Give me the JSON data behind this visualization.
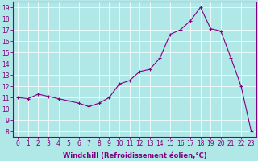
{
  "x": [
    0,
    1,
    2,
    3,
    4,
    5,
    6,
    7,
    8,
    9,
    10,
    11,
    12,
    13,
    14,
    15,
    16,
    17,
    18,
    19,
    20,
    21,
    22,
    23
  ],
  "y": [
    11.0,
    10.9,
    11.3,
    11.1,
    10.9,
    10.7,
    10.5,
    10.2,
    10.5,
    11.0,
    12.2,
    12.5,
    13.3,
    13.5,
    14.5,
    16.6,
    17.0,
    17.8,
    19.0,
    17.1,
    16.9,
    14.5,
    12.0,
    8.0
  ],
  "line_color": "#800080",
  "marker": "+",
  "marker_size": 3.5,
  "bg_color": "#b0e8e8",
  "grid_color": "#ffffff",
  "xlabel": "Windchill (Refroidissement éolien,°C)",
  "ylabel_ticks": [
    8,
    9,
    10,
    11,
    12,
    13,
    14,
    15,
    16,
    17,
    18,
    19
  ],
  "ylim": [
    7.5,
    19.5
  ],
  "xlim": [
    -0.5,
    23.5
  ],
  "xtick_labels": [
    "0",
    "1",
    "2",
    "3",
    "4",
    "5",
    "6",
    "7",
    "8",
    "9",
    "10",
    "11",
    "12",
    "13",
    "14",
    "15",
    "16",
    "17",
    "18",
    "19",
    "20",
    "21",
    "22",
    "23"
  ],
  "xlabel_color": "#800080",
  "tick_color": "#800080",
  "spine_color": "#800080",
  "label_fontsize": 6.0,
  "tick_fontsize": 5.5
}
